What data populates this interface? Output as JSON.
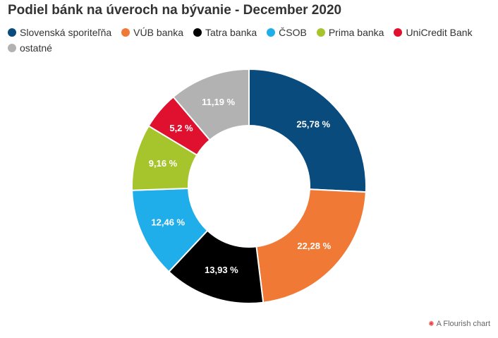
{
  "chart_data": {
    "type": "pie",
    "title": "Podiel bánk na úveroch na bývanie - December 2020",
    "series": [
      {
        "name": "Slovenská sporiteľňa",
        "value": 25.78,
        "label": "25,78 %",
        "color": "#084b7c"
      },
      {
        "name": "VÚB banka",
        "value": 22.28,
        "label": "22,28 %",
        "color": "#f07a35"
      },
      {
        "name": "Tatra banka",
        "value": 13.93,
        "label": "13,93 %",
        "color": "#000000"
      },
      {
        "name": "ČSOB",
        "value": 12.46,
        "label": "12,46 %",
        "color": "#20aeea"
      },
      {
        "name": "Prima banka",
        "value": 9.16,
        "label": "9,16 %",
        "color": "#a6c42b"
      },
      {
        "name": "UniCredit Bank",
        "value": 5.2,
        "label": "5,2 %",
        "color": "#e0102f"
      },
      {
        "name": "ostatné",
        "value": 11.19,
        "label": "11,19 %",
        "color": "#b2b2b2"
      }
    ],
    "legend_position": "top-left"
  },
  "credit": {
    "text": "A Flourish chart",
    "icon": "flourish-logo-icon"
  }
}
